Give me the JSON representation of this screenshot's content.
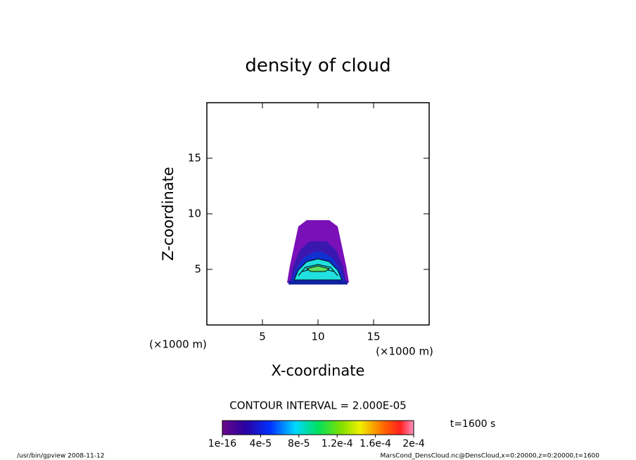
{
  "chart_data": {
    "type": "contour",
    "title": "density of cloud",
    "xlabel": "X-coordinate",
    "ylabel": "Z-coordinate",
    "xunit": "(×1000 m)",
    "yunit": "(×1000 m)",
    "xlim": [
      0,
      20
    ],
    "ylim": [
      0,
      20
    ],
    "xticks": [
      5,
      10,
      15
    ],
    "yticks": [
      5,
      10,
      15
    ],
    "contour_interval": "CONTOUR INTERVAL = 2.000E-05",
    "time_label": "t=1600 s",
    "clim": [
      1e-16,
      0.0002
    ],
    "cticks": [
      {
        "value": 1e-16,
        "label": "1e-16"
      },
      {
        "value": 4e-05,
        "label": "4e-5"
      },
      {
        "value": 8e-05,
        "label": "8e-5"
      },
      {
        "value": 0.00012,
        "label": "1.2e-4"
      },
      {
        "value": 0.00016,
        "label": "1.6e-4"
      },
      {
        "value": 0.0002,
        "label": "2e-4"
      }
    ],
    "footer_left": "/usr/bin/gpview   2008-11-12",
    "footer_right": "MarsCond_DensCloud.nc@DensCloud,x=0:20000,z=0:20000,t=1600"
  }
}
